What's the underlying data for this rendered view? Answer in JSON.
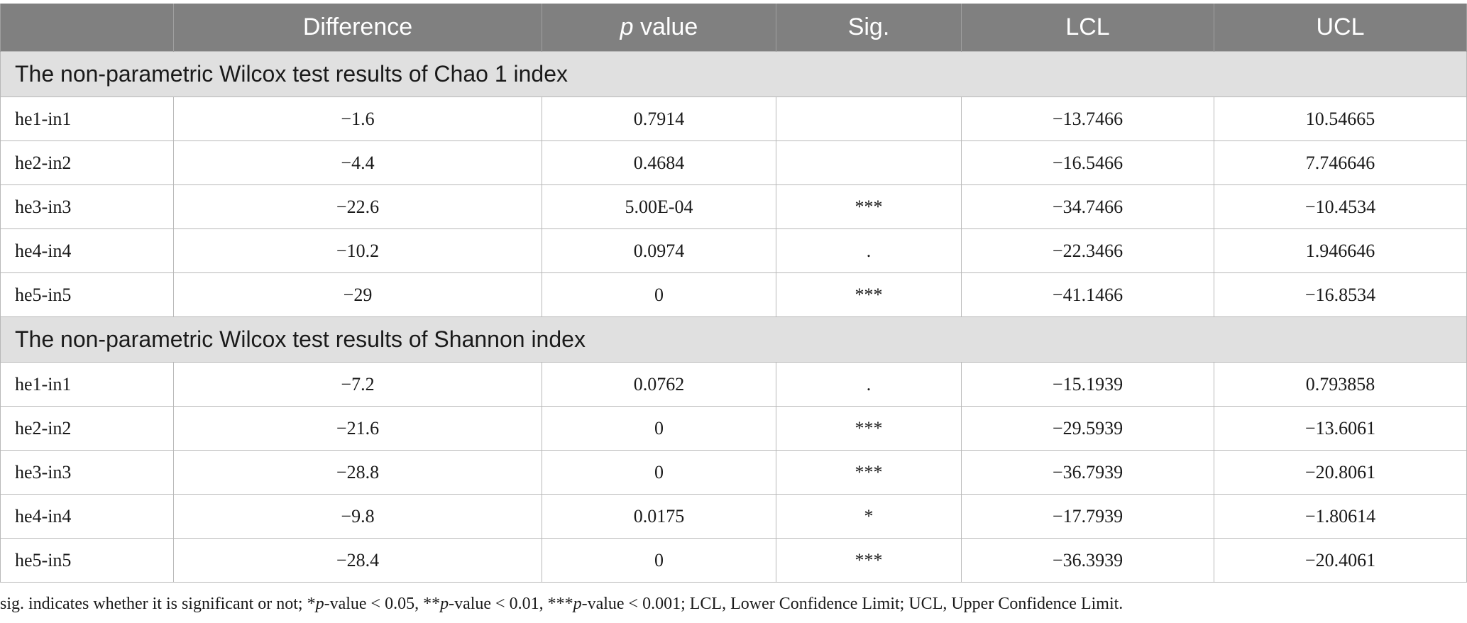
{
  "headers": {
    "blank": "",
    "difference": "Difference",
    "p_italic": "p",
    "p_rest": " value",
    "sig": "Sig.",
    "lcl": "LCL",
    "ucl": "UCL"
  },
  "sections": [
    {
      "title": "The non-parametric Wilcox test results of Chao 1 index",
      "rows": [
        {
          "comparison": "he1-in1",
          "difference": "−1.6",
          "p_value": "0.7914",
          "sig": "",
          "lcl": "−13.7466",
          "ucl": "10.54665"
        },
        {
          "comparison": "he2-in2",
          "difference": "−4.4",
          "p_value": "0.4684",
          "sig": "",
          "lcl": "−16.5466",
          "ucl": "7.746646"
        },
        {
          "comparison": "he3-in3",
          "difference": "−22.6",
          "p_value": "5.00E-04",
          "sig": "***",
          "lcl": "−34.7466",
          "ucl": "−10.4534"
        },
        {
          "comparison": "he4-in4",
          "difference": "−10.2",
          "p_value": "0.0974",
          "sig": ".",
          "lcl": "−22.3466",
          "ucl": "1.946646"
        },
        {
          "comparison": "he5-in5",
          "difference": "−29",
          "p_value": "0",
          "sig": "***",
          "lcl": "−41.1466",
          "ucl": "−16.8534"
        }
      ]
    },
    {
      "title": "The non-parametric Wilcox test results of Shannon index",
      "rows": [
        {
          "comparison": "he1-in1",
          "difference": "−7.2",
          "p_value": "0.0762",
          "sig": ".",
          "lcl": "−15.1939",
          "ucl": "0.793858"
        },
        {
          "comparison": "he2-in2",
          "difference": "−21.6",
          "p_value": "0",
          "sig": "***",
          "lcl": "−29.5939",
          "ucl": "−13.6061"
        },
        {
          "comparison": "he3-in3",
          "difference": "−28.8",
          "p_value": "0",
          "sig": "***",
          "lcl": "−36.7939",
          "ucl": "−20.8061"
        },
        {
          "comparison": "he4-in4",
          "difference": "−9.8",
          "p_value": "0.0175",
          "sig": "*",
          "lcl": "−17.7939",
          "ucl": "−1.80614"
        },
        {
          "comparison": "he5-in5",
          "difference": "−28.4",
          "p_value": "0",
          "sig": "***",
          "lcl": "−36.3939",
          "ucl": "−20.4061"
        }
      ]
    }
  ],
  "footnote": {
    "part1": "sig. indicates whether it is significant or not; *",
    "p1": "p",
    "part2": "-value < 0.05, **",
    "p2": "p",
    "part3": "-value < 0.01, ***",
    "p3": "p",
    "part4": "-value < 0.001; LCL, Lower Confidence Limit; UCL, Upper Confidence Limit."
  },
  "colors": {
    "header_bg": "#808080",
    "section_bg": "#e0e0e0",
    "border": "#b8b8b8"
  }
}
